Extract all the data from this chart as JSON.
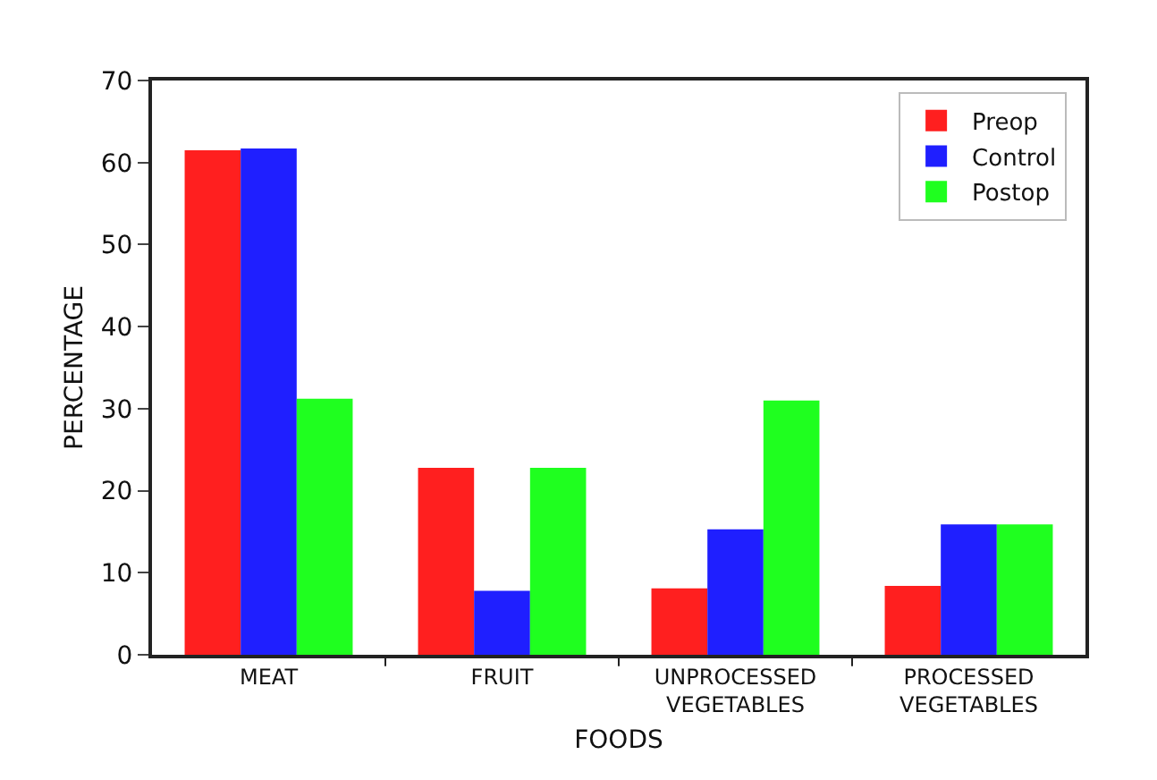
{
  "chart_data": {
    "type": "bar",
    "xlabel": "FOODS",
    "ylabel": "PERCENTAGE",
    "categories": [
      "MEAT",
      "FRUIT",
      "UNPROCESSED VEGETABLES",
      "PROCESSED VEGETABLES"
    ],
    "series": [
      {
        "name": "Preop",
        "color": "#ff1f1f",
        "values": [
          61.5,
          22.8,
          8.1,
          8.4
        ]
      },
      {
        "name": "Control",
        "color": "#1f1fff",
        "values": [
          61.7,
          7.8,
          15.3,
          15.9
        ]
      },
      {
        "name": "Postop",
        "color": "#1fff1f",
        "values": [
          31.2,
          22.8,
          31.0,
          15.9
        ]
      }
    ],
    "ylim": [
      0,
      70
    ],
    "yticks": [
      0,
      10,
      20,
      30,
      40,
      50,
      60,
      70
    ],
    "grid": false,
    "legend": "top right"
  }
}
